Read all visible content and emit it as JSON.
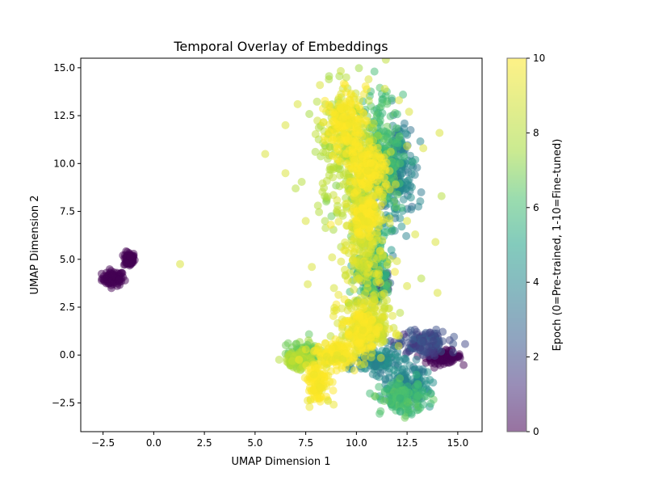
{
  "chart_data": {
    "type": "scatter",
    "title": "Temporal Overlay of Embeddings",
    "xlabel": "UMAP Dimension 1",
    "ylabel": "UMAP Dimension 2",
    "xlim": [
      -3.6,
      16.2
    ],
    "ylim": [
      -4.0,
      15.5
    ],
    "xticks": [
      -2.5,
      0.0,
      2.5,
      5.0,
      7.5,
      10.0,
      12.5,
      15.0
    ],
    "xtick_labels": [
      "−2.5",
      "0.0",
      "2.5",
      "5.0",
      "7.5",
      "10.0",
      "12.5",
      "15.0"
    ],
    "yticks": [
      -2.5,
      0.0,
      2.5,
      5.0,
      7.5,
      10.0,
      12.5,
      15.0
    ],
    "ytick_labels": [
      "−2.5",
      "0.0",
      "2.5",
      "5.0",
      "7.5",
      "10.0",
      "12.5",
      "15.0"
    ],
    "grid": false,
    "colormap": "viridis",
    "colorbar": {
      "label": "Epoch (0=Pre-trained, 1-10=Fine-tuned)",
      "min": 0,
      "max": 10,
      "ticks": [
        0,
        2,
        4,
        6,
        8,
        10
      ],
      "tick_labels": [
        "0",
        "2",
        "4",
        "6",
        "8",
        "10"
      ]
    },
    "clusters": [
      {
        "epoch": 0,
        "center": [
          -2.0,
          4.0
        ],
        "spread": [
          0.5,
          0.35
        ]
      },
      {
        "epoch": 0,
        "center": [
          -1.2,
          5.0
        ],
        "spread": [
          0.25,
          0.35
        ]
      },
      {
        "epoch": 0,
        "center": [
          11.6,
          9.1
        ],
        "spread": [
          0.35,
          0.4
        ]
      },
      {
        "epoch": 0,
        "center": [
          14.3,
          -0.1
        ],
        "spread": [
          0.8,
          0.3
        ]
      },
      {
        "epoch": 2,
        "center": [
          13.2,
          0.7
        ],
        "spread": [
          1.2,
          0.6
        ]
      },
      {
        "epoch": 2,
        "center": [
          11.0,
          3.8
        ],
        "spread": [
          0.6,
          0.6
        ]
      },
      {
        "epoch": 4,
        "center": [
          12.5,
          -1.5
        ],
        "spread": [
          1.0,
          1.0
        ]
      },
      {
        "epoch": 4,
        "center": [
          12.0,
          9.5
        ],
        "spread": [
          0.8,
          2.5
        ]
      },
      {
        "epoch": 4,
        "center": [
          11.0,
          -0.3
        ],
        "spread": [
          1.0,
          0.6
        ]
      },
      {
        "epoch": 6,
        "center": [
          11.2,
          10.5
        ],
        "spread": [
          1.0,
          2.8
        ]
      },
      {
        "epoch": 6,
        "center": [
          10.8,
          4.5
        ],
        "spread": [
          0.8,
          2.0
        ]
      },
      {
        "epoch": 6,
        "center": [
          12.3,
          -2.3
        ],
        "spread": [
          1.0,
          0.7
        ]
      },
      {
        "epoch": 7,
        "center": [
          7.5,
          0.1
        ],
        "spread": [
          0.8,
          0.5
        ]
      },
      {
        "epoch": 8,
        "center": [
          7.2,
          -0.3
        ],
        "spread": [
          0.6,
          0.4
        ]
      },
      {
        "epoch": 8,
        "center": [
          9.5,
          10.5
        ],
        "spread": [
          1.4,
          3.0
        ]
      },
      {
        "epoch": 9,
        "center": [
          10.4,
          6.0
        ],
        "spread": [
          1.0,
          4.0
        ]
      },
      {
        "epoch": 9,
        "center": [
          10.5,
          1.5
        ],
        "spread": [
          1.2,
          1.3
        ]
      },
      {
        "epoch": 10,
        "center": [
          9.5,
          12.2
        ],
        "spread": [
          0.9,
          1.4
        ]
      },
      {
        "epoch": 10,
        "center": [
          10.6,
          9.8
        ],
        "spread": [
          0.8,
          1.2
        ]
      },
      {
        "epoch": 10,
        "center": [
          10.4,
          7.2
        ],
        "spread": [
          0.6,
          0.8
        ]
      },
      {
        "epoch": 10,
        "center": [
          10.3,
          1.3
        ],
        "spread": [
          0.7,
          1.0
        ]
      },
      {
        "epoch": 10,
        "center": [
          8.1,
          -1.4
        ],
        "spread": [
          0.5,
          1.0
        ]
      },
      {
        "epoch": 10,
        "center": [
          9.0,
          0.0
        ],
        "spread": [
          0.9,
          0.6
        ]
      }
    ],
    "outliers": [
      {
        "x": 1.3,
        "y": 4.75,
        "epoch": 9
      },
      {
        "x": 5.5,
        "y": 10.5,
        "epoch": 9
      },
      {
        "x": 6.5,
        "y": 12.0,
        "epoch": 9
      },
      {
        "x": 6.5,
        "y": 9.5,
        "epoch": 9
      },
      {
        "x": 7.0,
        "y": 8.7,
        "epoch": 8
      },
      {
        "x": 7.1,
        "y": 13.1,
        "epoch": 9
      },
      {
        "x": 7.5,
        "y": 7.0,
        "epoch": 9
      },
      {
        "x": 7.8,
        "y": 4.6,
        "epoch": 9
      },
      {
        "x": 7.6,
        "y": 3.7,
        "epoch": 9
      },
      {
        "x": 8.1,
        "y": 7.8,
        "epoch": 8
      },
      {
        "x": 8.8,
        "y": 5.1,
        "epoch": 9
      },
      {
        "x": 8.6,
        "y": -2.4,
        "epoch": 9
      },
      {
        "x": 8.2,
        "y": 14.1,
        "epoch": 9
      },
      {
        "x": 9.5,
        "y": 14.5,
        "epoch": 8
      },
      {
        "x": 10.6,
        "y": 14.4,
        "epoch": 9
      },
      {
        "x": 11.4,
        "y": 13.9,
        "epoch": 9
      },
      {
        "x": 12.1,
        "y": 13.3,
        "epoch": 9
      },
      {
        "x": 12.6,
        "y": 12.7,
        "epoch": 9
      },
      {
        "x": 12.5,
        "y": 10.9,
        "epoch": 9
      },
      {
        "x": 12.5,
        "y": 7.0,
        "epoch": 9
      },
      {
        "x": 12.9,
        "y": 6.3,
        "epoch": 9
      },
      {
        "x": 12.0,
        "y": 4.9,
        "epoch": 9
      },
      {
        "x": 12.5,
        "y": 3.6,
        "epoch": 9
      },
      {
        "x": 13.3,
        "y": 10.8,
        "epoch": 9
      },
      {
        "x": 13.2,
        "y": 4.0,
        "epoch": 8
      },
      {
        "x": 13.9,
        "y": 5.9,
        "epoch": 9
      },
      {
        "x": 14.1,
        "y": 11.6,
        "epoch": 9
      },
      {
        "x": 14.2,
        "y": 8.3,
        "epoch": 8
      },
      {
        "x": 14.0,
        "y": 3.25,
        "epoch": 9
      }
    ]
  }
}
